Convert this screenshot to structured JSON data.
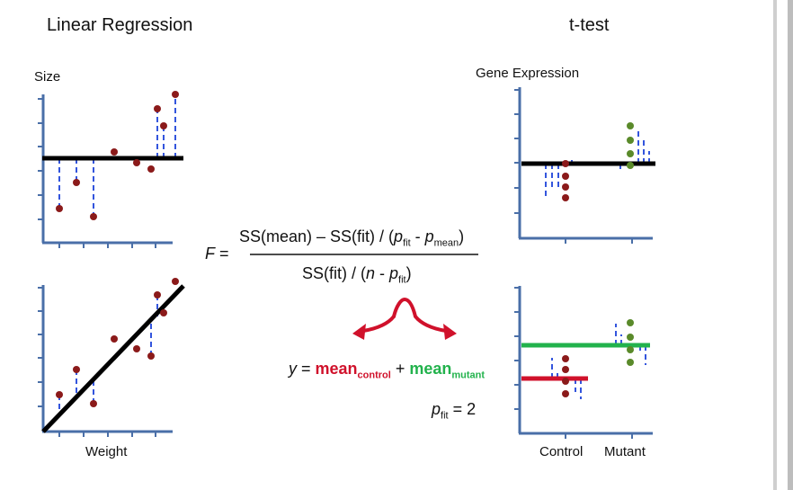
{
  "titles": {
    "left": "Linear Regression",
    "right": "t-test"
  },
  "labels": {
    "size": "Size",
    "weight": "Weight",
    "gene_expression": "Gene Expression",
    "control": "Control",
    "mutant": "Mutant"
  },
  "formula": {
    "f": "F",
    "equals": "=",
    "numerator_a": "SS(mean) – SS(fit) / (",
    "p": "p",
    "sub_fit": "fit",
    "sub_mean": "mean",
    "minus": " - ",
    "close": ")",
    "denominator_a": "SS(fit) / (",
    "n": "n",
    "minus_p": " - "
  },
  "model": {
    "y": "y",
    "equals": " = ",
    "mean": "mean",
    "sub_control": "control",
    "plus": " + ",
    "sub_mutant": "mutant"
  },
  "pfit": {
    "p": "p",
    "sub": "fit",
    "value": " = 2"
  },
  "colors": {
    "axis": "#4a6fa8",
    "residual": "#3355dd",
    "red_point": "#8b1a1a",
    "green_point": "#5a8a2a",
    "red": "#d0112b",
    "green": "#22b24c",
    "fit_line": "#000000"
  }
}
